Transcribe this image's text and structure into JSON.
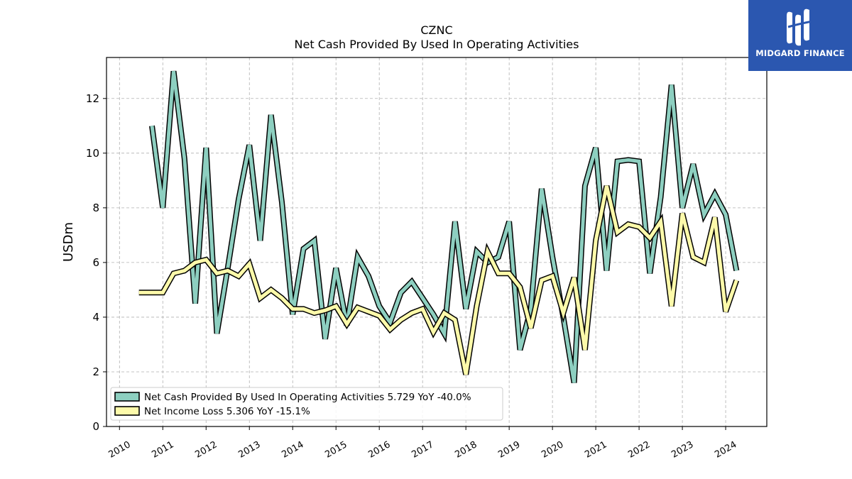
{
  "brand": {
    "name": "MIDGARD FINANCE",
    "logo_icon": "midgard-logo-icon",
    "background": "#2b57b0"
  },
  "chart_data": {
    "type": "line",
    "title": "CZNC",
    "subtitle": "Net Cash Provided By Used In Operating Activities",
    "xlabel": "",
    "ylabel": "USDm",
    "xlim": [
      2009.7,
      2024.95
    ],
    "ylim": [
      0,
      13.5
    ],
    "yticks": [
      0,
      2,
      4,
      6,
      8,
      10,
      12
    ],
    "xticks": [
      "2010",
      "2011",
      "2012",
      "2013",
      "2014",
      "2015",
      "2016",
      "2017",
      "2018",
      "2019",
      "2020",
      "2021",
      "2022",
      "2023",
      "2024"
    ],
    "grid": true,
    "legend_position": "lower-left",
    "series": [
      {
        "name": "Net Cash Provided By Used In Operating Activities",
        "legend_label": "Net Cash Provided By Used In Operating Activities  5.729 YoY -40.0%",
        "color": "#8dcfc0",
        "x": [
          2010.75,
          2011.0,
          2011.25,
          2011.5,
          2011.75,
          2012.0,
          2012.25,
          2012.5,
          2012.75,
          2013.0,
          2013.25,
          2013.5,
          2013.75,
          2014.0,
          2014.25,
          2014.5,
          2014.75,
          2015.0,
          2015.25,
          2015.5,
          2015.75,
          2016.0,
          2016.25,
          2016.5,
          2016.75,
          2017.0,
          2017.25,
          2017.5,
          2017.75,
          2018.0,
          2018.25,
          2018.5,
          2018.75,
          2019.0,
          2019.25,
          2019.5,
          2019.75,
          2020.0,
          2020.25,
          2020.5,
          2020.75,
          2021.0,
          2021.25,
          2021.5,
          2021.75,
          2022.0,
          2022.25,
          2022.5,
          2022.75,
          2023.0,
          2023.25,
          2023.5,
          2023.75,
          2024.0,
          2024.25
        ],
        "values": [
          11.0,
          8.0,
          13.0,
          9.8,
          4.5,
          10.2,
          3.4,
          5.8,
          8.3,
          10.3,
          6.8,
          11.4,
          8.2,
          4.1,
          6.5,
          6.8,
          3.2,
          5.8,
          3.7,
          6.2,
          5.5,
          4.4,
          3.8,
          4.9,
          5.3,
          4.7,
          4.1,
          3.4,
          7.5,
          4.3,
          6.4,
          6.0,
          6.2,
          7.5,
          2.8,
          4.3,
          8.7,
          6.2,
          4.0,
          1.6,
          8.8,
          10.2,
          5.7,
          9.7,
          9.75,
          9.7,
          5.6,
          8.4,
          12.5,
          8.0,
          9.6,
          7.75,
          8.5,
          7.75,
          5.7
        ]
      },
      {
        "name": "Net Income Loss",
        "legend_label": "Net Income Loss  5.306 YoY -15.1%",
        "color": "#fdfaaa",
        "x": [
          2010.45,
          2010.75,
          2011.0,
          2011.25,
          2011.5,
          2011.75,
          2012.0,
          2012.25,
          2012.5,
          2012.75,
          2013.0,
          2013.25,
          2013.5,
          2013.75,
          2014.0,
          2014.25,
          2014.5,
          2014.75,
          2015.0,
          2015.25,
          2015.5,
          2015.75,
          2016.0,
          2016.25,
          2016.5,
          2016.75,
          2017.0,
          2017.25,
          2017.5,
          2017.75,
          2018.0,
          2018.25,
          2018.5,
          2018.75,
          2019.0,
          2019.25,
          2019.5,
          2019.75,
          2020.0,
          2020.25,
          2020.5,
          2020.75,
          2021.0,
          2021.25,
          2021.5,
          2021.75,
          2022.0,
          2022.25,
          2022.5,
          2022.75,
          2023.0,
          2023.25,
          2023.5,
          2023.75,
          2024.0,
          2024.25
        ],
        "values": [
          4.9,
          4.9,
          4.9,
          5.6,
          5.7,
          6.0,
          6.1,
          5.6,
          5.7,
          5.5,
          5.95,
          4.7,
          5.0,
          4.7,
          4.3,
          4.3,
          4.15,
          4.25,
          4.4,
          3.75,
          4.35,
          4.2,
          4.05,
          3.55,
          3.9,
          4.15,
          4.3,
          3.45,
          4.15,
          3.9,
          1.9,
          4.4,
          6.4,
          5.6,
          5.6,
          5.1,
          3.6,
          5.35,
          5.5,
          4.15,
          5.45,
          2.8,
          6.8,
          8.8,
          7.1,
          7.4,
          7.3,
          6.9,
          7.5,
          4.4,
          7.8,
          6.2,
          6.0,
          7.65,
          4.2,
          5.35
        ]
      }
    ]
  }
}
